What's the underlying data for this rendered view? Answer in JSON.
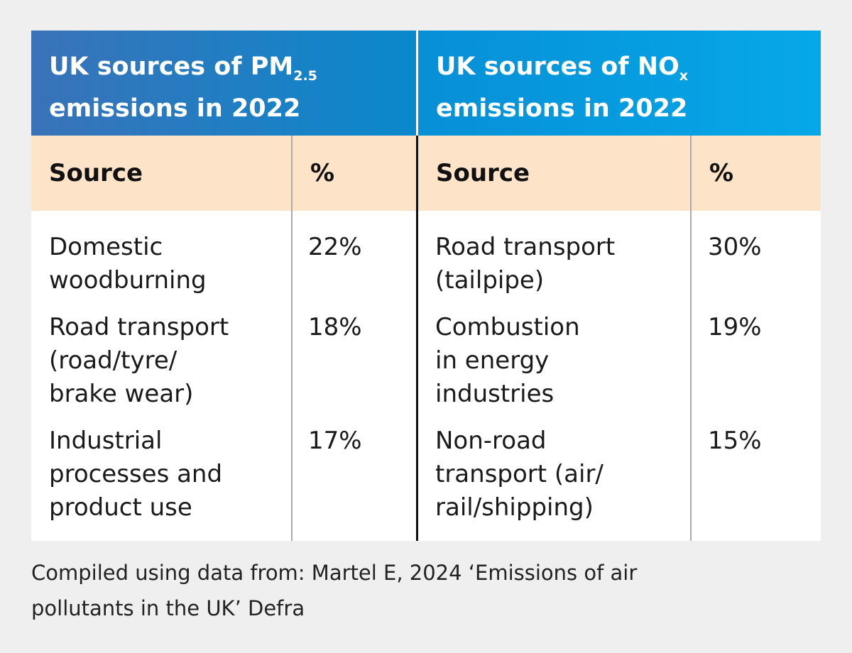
{
  "left": {
    "title_line1": "UK sources of PM",
    "title_sub": "2.5",
    "title_line2": "emissions in 2022",
    "col_source": "Source",
    "col_pct": "%",
    "rows": [
      {
        "source": [
          "Domestic",
          "woodburning"
        ],
        "pct": "22%"
      },
      {
        "source": [
          "Road transport",
          "(road/tyre/",
          "brake wear)"
        ],
        "pct": "18%"
      },
      {
        "source": [
          "Industrial",
          "processes and",
          "product use"
        ],
        "pct": "17%"
      }
    ]
  },
  "right": {
    "title_line1": "UK sources of NO",
    "title_sub": "x",
    "title_line2": "emissions in 2022",
    "col_source": "Source",
    "col_pct": "%",
    "rows": [
      {
        "source": [
          "Road transport",
          "(tailpipe)"
        ],
        "pct": "30%"
      },
      {
        "source": [
          "Combustion",
          "in energy",
          "industries"
        ],
        "pct": "19%"
      },
      {
        "source": [
          "Non-road",
          "transport (air/",
          "rail/shipping)"
        ],
        "pct": "15%"
      }
    ]
  },
  "caption": [
    "Compiled using data from: Martel E, 2024 ‘Emissions of air",
    "pollutants in the UK’ Defra"
  ],
  "colors": {
    "header_left": "#3a72b8",
    "header_right": "#06a8e8",
    "subheader": "#fde3c8"
  }
}
